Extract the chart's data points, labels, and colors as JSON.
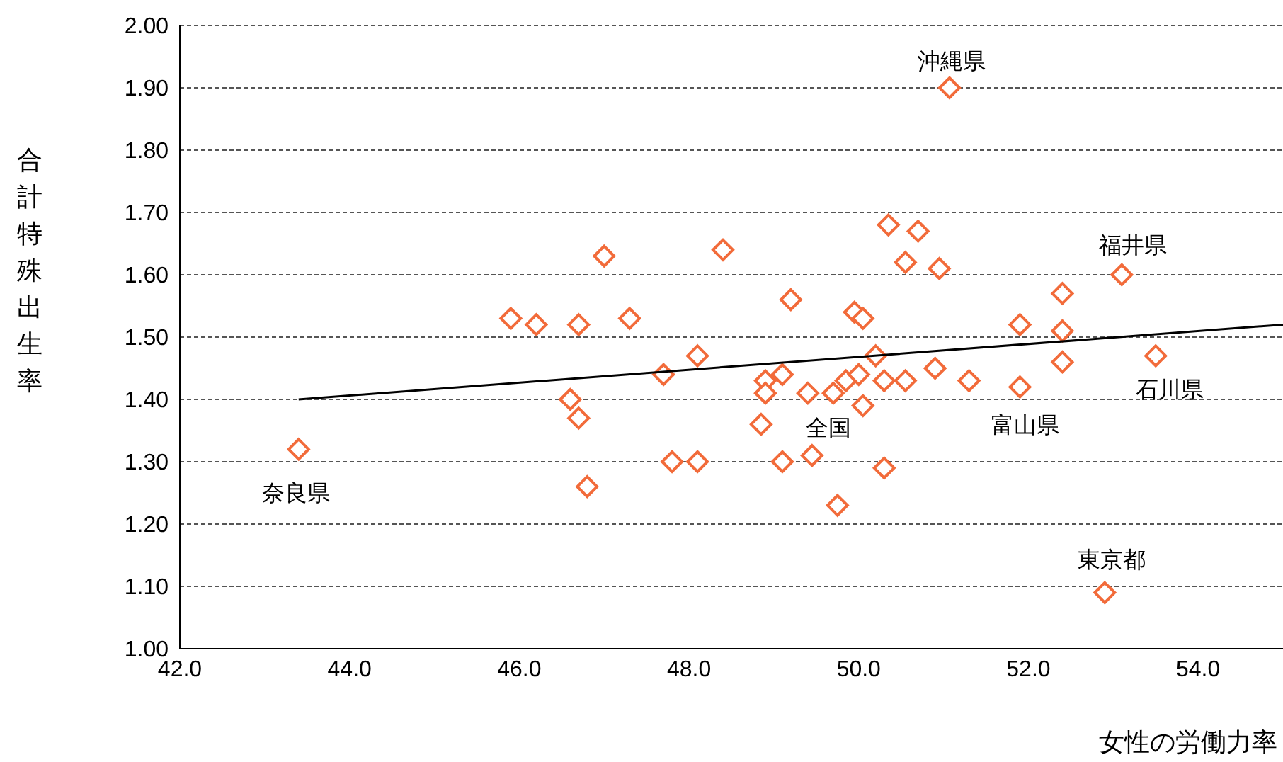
{
  "chart_data": {
    "type": "scatter",
    "xlabel": "女性の労働力率",
    "ylabel": "合計特殊出生率",
    "xlim": [
      42,
      55
    ],
    "ylim": [
      1.0,
      2.0
    ],
    "xticks": [
      {
        "value": 42,
        "label": "42.0"
      },
      {
        "value": 44,
        "label": "44.0"
      },
      {
        "value": 46,
        "label": "46.0"
      },
      {
        "value": 48,
        "label": "48.0"
      },
      {
        "value": 50,
        "label": "50.0"
      },
      {
        "value": 52,
        "label": "52.0"
      },
      {
        "value": 54,
        "label": "54.0"
      }
    ],
    "yticks": [
      {
        "value": 1.0,
        "label": "1.00"
      },
      {
        "value": 1.1,
        "label": "1.10"
      },
      {
        "value": 1.2,
        "label": "1.20"
      },
      {
        "value": 1.3,
        "label": "1.30"
      },
      {
        "value": 1.4,
        "label": "1.40"
      },
      {
        "value": 1.5,
        "label": "1.50"
      },
      {
        "value": 1.6,
        "label": "1.60"
      },
      {
        "value": 1.7,
        "label": "1.70"
      },
      {
        "value": 1.8,
        "label": "1.80"
      },
      {
        "value": 1.9,
        "label": "1.90"
      },
      {
        "value": 2.0,
        "label": "2.00"
      }
    ],
    "grid": "y",
    "marker": "diamond",
    "series": [
      {
        "color": "#f26b3a",
        "x": [
          43.4,
          45.9,
          46.2,
          46.7,
          47.0,
          47.3,
          46.6,
          46.7,
          46.8,
          47.7,
          47.8,
          48.1,
          48.1,
          48.4,
          48.85,
          48.9,
          48.9,
          49.1,
          49.2,
          49.1,
          49.4,
          49.45,
          49.75,
          49.7,
          49.85,
          49.95,
          50.05,
          50.0,
          50.05,
          50.2,
          50.3,
          50.3,
          50.35,
          50.7,
          50.55,
          50.55,
          50.9,
          50.95,
          51.07,
          51.3,
          51.9,
          51.9,
          52.4,
          52.4,
          52.4,
          53.1,
          53.5,
          52.9
        ],
        "values": [
          1.32,
          1.53,
          1.52,
          1.52,
          1.63,
          1.53,
          1.4,
          1.37,
          1.26,
          1.44,
          1.3,
          1.47,
          1.3,
          1.64,
          1.36,
          1.43,
          1.41,
          1.44,
          1.56,
          1.3,
          1.41,
          1.31,
          1.23,
          1.41,
          1.43,
          1.54,
          1.53,
          1.44,
          1.39,
          1.47,
          1.43,
          1.29,
          1.68,
          1.67,
          1.62,
          1.43,
          1.45,
          1.61,
          1.9,
          1.43,
          1.52,
          1.42,
          1.57,
          1.51,
          1.46,
          1.6,
          1.47,
          1.09
        ]
      },
      {
        "type": "line",
        "color": "#000000",
        "marker": "none",
        "x": [
          43.4,
          55
        ],
        "values": [
          1.4,
          1.52
        ]
      }
    ],
    "annotations": [
      "沖縄県",
      "福井県",
      "石川県",
      "富山県",
      "全国",
      "奈良県",
      "東京都"
    ]
  }
}
